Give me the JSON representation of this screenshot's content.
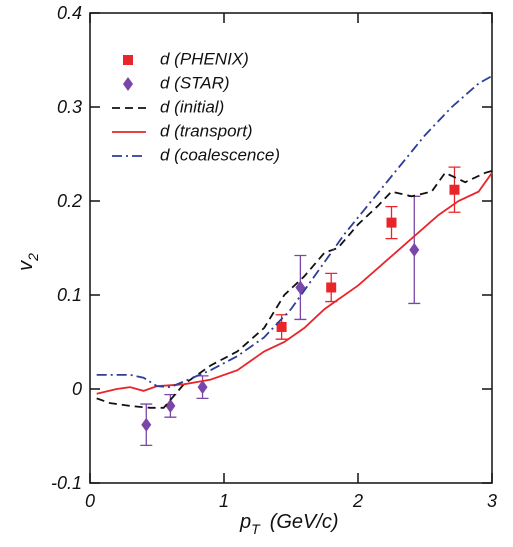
{
  "chart_data": {
    "type": "line",
    "xlabel": {
      "text": "p",
      "subscript": "T",
      "unit": "(GeV/c)"
    },
    "ylabel": {
      "text": "v",
      "subscript": "2"
    },
    "xlim": [
      0,
      3
    ],
    "xticks": [
      0,
      1,
      2,
      3
    ],
    "ylim": [
      -0.1,
      0.4
    ],
    "yticks": [
      -0.1,
      0,
      0.1,
      0.2,
      0.3,
      0.4
    ],
    "legend": "upper left",
    "series": [
      {
        "name": "d (PHENIX)",
        "kind": "points",
        "marker": "square",
        "color": "#e8262a",
        "x": [
          1.43,
          1.8,
          2.25,
          2.72
        ],
        "values": [
          0.066,
          0.108,
          0.177,
          0.212
        ],
        "errors": [
          0.013,
          0.015,
          0.017,
          0.024
        ]
      },
      {
        "name": "d (STAR)",
        "kind": "points",
        "marker": "diamond",
        "color": "#7a47a8",
        "x": [
          0.42,
          0.6,
          0.84,
          1.57,
          2.42
        ],
        "values": [
          -0.038,
          -0.018,
          0.002,
          0.108,
          0.148
        ],
        "errors": [
          0.022,
          0.012,
          0.012,
          0.034,
          0.057
        ]
      },
      {
        "name": "d (initial)",
        "kind": "line",
        "dash": "8,5",
        "color": "#111111",
        "x": [
          0.05,
          0.15,
          0.3,
          0.45,
          0.55,
          0.7,
          0.9,
          1.1,
          1.3,
          1.45,
          1.6,
          1.75,
          1.85,
          2.0,
          2.15,
          2.25,
          2.4,
          2.55,
          2.65,
          2.8,
          2.95,
          3.0
        ],
        "values": [
          -0.01,
          -0.015,
          -0.018,
          -0.02,
          -0.02,
          0.005,
          0.025,
          0.04,
          0.065,
          0.1,
          0.12,
          0.145,
          0.15,
          0.175,
          0.195,
          0.21,
          0.205,
          0.21,
          0.23,
          0.22,
          0.23,
          0.232
        ]
      },
      {
        "name": "d (transport)",
        "kind": "line",
        "dash": "",
        "color": "#e8262a",
        "x": [
          0.05,
          0.2,
          0.3,
          0.4,
          0.5,
          0.7,
          0.9,
          1.1,
          1.3,
          1.45,
          1.6,
          1.75,
          2.0,
          2.2,
          2.4,
          2.6,
          2.75,
          2.9,
          3.0
        ],
        "values": [
          -0.005,
          0.0,
          0.002,
          -0.002,
          0.003,
          0.005,
          0.01,
          0.02,
          0.04,
          0.05,
          0.065,
          0.085,
          0.11,
          0.135,
          0.16,
          0.185,
          0.2,
          0.21,
          0.23
        ]
      },
      {
        "name": "d (coalescence)",
        "kind": "line",
        "dash": "10,4,2,4",
        "color": "#2c3e99",
        "x": [
          0.05,
          0.3,
          0.4,
          0.5,
          0.6,
          0.7,
          0.9,
          1.1,
          1.3,
          1.5,
          1.7,
          1.9,
          2.1,
          2.3,
          2.5,
          2.7,
          2.9,
          3.0
        ],
        "values": [
          0.015,
          0.015,
          0.012,
          0.003,
          0.002,
          0.008,
          0.02,
          0.035,
          0.055,
          0.085,
          0.125,
          0.165,
          0.2,
          0.235,
          0.27,
          0.3,
          0.325,
          0.333
        ]
      }
    ]
  }
}
